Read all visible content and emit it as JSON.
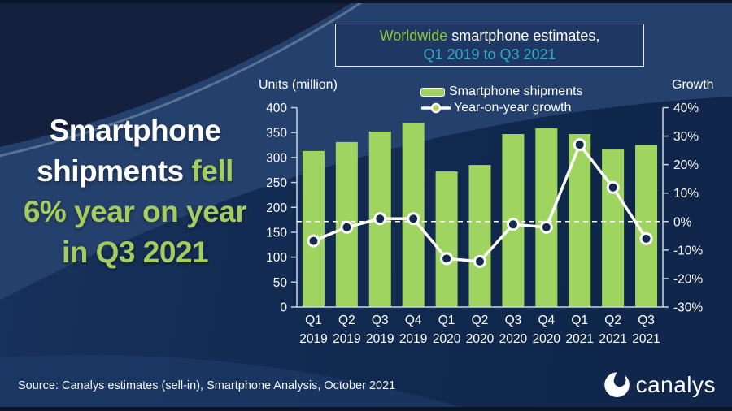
{
  "headline": {
    "l1": "Smartphone",
    "l2a": "shipments ",
    "l2b": "fell",
    "l3": "6% year on year",
    "l4": "in Q3 2021"
  },
  "title_box": {
    "t1a": "Worldwide",
    "t1b": " smartphone estimates,",
    "t2": "Q1 2019 to Q3 2021"
  },
  "legend": [
    {
      "label": "Smartphone shipments",
      "swatch": "green-bar-swatch"
    },
    {
      "label": "Year-on-year growth",
      "swatch": "line-marker-swatch"
    }
  ],
  "source": "Source:  Canalys estimates (sell-in), Smartphone Analysis, October 2021",
  "logo_text": "canalys",
  "colors": {
    "bar_green": "#9ed45f",
    "headline_green": "#a4cc5e",
    "title_green": "#8dc63f",
    "title_teal": "#2fa9c9",
    "line_white": "#ffffff",
    "marker_fill_navy": "#12294e",
    "axis_line": "#ccd6e4"
  },
  "chart_data": {
    "type": "bar",
    "title": "Worldwide smartphone estimates, Q1 2019 to Q3 2021",
    "categories": [
      "Q1 2019",
      "Q2 2019",
      "Q3 2019",
      "Q4 2019",
      "Q1 2020",
      "Q2 2020",
      "Q3 2020",
      "Q4 2020",
      "Q1 2021",
      "Q2 2021",
      "Q3 2021"
    ],
    "series": [
      {
        "name": "Smartphone shipments",
        "type": "bar",
        "axis": "left",
        "values": [
          313,
          331,
          352,
          369,
          272,
          285,
          347,
          359,
          347,
          316,
          325
        ]
      },
      {
        "name": "Year-on-year growth",
        "type": "line",
        "axis": "right",
        "values": [
          -6.8,
          -2,
          1,
          1,
          -13,
          -14,
          -1,
          -2,
          27,
          12,
          -6
        ]
      }
    ],
    "left_axis": {
      "label": "Units (million)",
      "min": 0,
      "max": 400,
      "step": 50
    },
    "right_axis": {
      "label": "Growth",
      "min": -30,
      "max": 40,
      "step": 10,
      "format": "percent"
    },
    "zero_line_dashed": true,
    "legend_position": "top",
    "grid": false
  }
}
